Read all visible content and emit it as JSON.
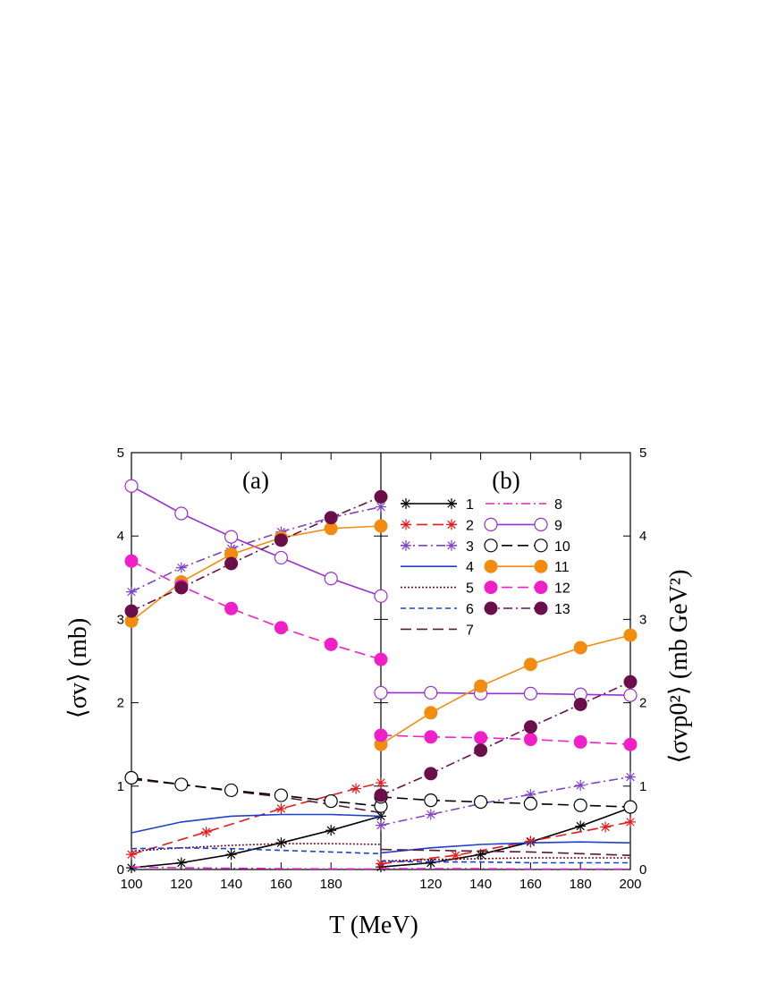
{
  "chart_data": {
    "type": "line",
    "xlabel": "T (MeV)",
    "ylabel_left": "⟨σv⟩ (mb)",
    "ylabel_right": "⟨σvp0²⟩ (mb GeV²)",
    "panel_labels": {
      "a": "(a)",
      "b": "(b)"
    },
    "panel_a": {
      "xlim": [
        100,
        200
      ],
      "ylim": [
        0,
        5
      ],
      "x_ticks": [
        "100",
        "120",
        "140",
        "160",
        "180"
      ]
    },
    "panel_b": {
      "xlim": [
        100,
        200
      ],
      "ylim": [
        0,
        5
      ],
      "x_ticks": [
        "120",
        "140",
        "160",
        "180",
        "200"
      ]
    },
    "y_ticks": [
      "0",
      "1",
      "2",
      "3",
      "4",
      "5"
    ],
    "legend_placement": "top-center, two columns",
    "legend": [
      {
        "label": "1",
        "color": "#000000",
        "dash": "solid",
        "marker": "star"
      },
      {
        "label": "2",
        "color": "#e41a1c",
        "dash": "long-dash",
        "marker": "star"
      },
      {
        "label": "3",
        "color": "#7d43c8",
        "dash": "dash-dot",
        "marker": "star"
      },
      {
        "label": "4",
        "color": "#1f3fcc",
        "dash": "solid",
        "marker": "none"
      },
      {
        "label": "5",
        "color": "#6b0f2a",
        "dash": "dotted",
        "marker": "none"
      },
      {
        "label": "6",
        "color": "#1f3fcc",
        "dash": "short-dash",
        "marker": "none"
      },
      {
        "label": "7",
        "color": "#5a1a3a",
        "dash": "long-dash",
        "marker": "none"
      },
      {
        "label": "8",
        "color": "#e020c8",
        "dash": "dash-dot",
        "marker": "none"
      },
      {
        "label": "9",
        "color": "#9b30d0",
        "dash": "solid",
        "marker": "open-circle"
      },
      {
        "label": "10",
        "color": "#000000",
        "dash": "long-dash",
        "marker": "open-circle"
      },
      {
        "label": "11",
        "color": "#f28c0f",
        "dash": "solid",
        "marker": "filled-circle"
      },
      {
        "label": "12",
        "color": "#f020c8",
        "dash": "long-dash",
        "marker": "filled-circle"
      },
      {
        "label": "13",
        "color": "#6b0f4a",
        "dash": "dash-dot",
        "marker": "filled-circle"
      }
    ],
    "series_a": [
      {
        "label": "1",
        "x": [
          100,
          120,
          140,
          160,
          180,
          200
        ],
        "y": [
          0.02,
          0.08,
          0.18,
          0.32,
          0.47,
          0.64
        ]
      },
      {
        "label": "2",
        "x": [
          100,
          130,
          160,
          190,
          200
        ],
        "y": [
          0.18,
          0.45,
          0.73,
          0.97,
          1.04
        ]
      },
      {
        "label": "3",
        "x": [
          100,
          120,
          140,
          160,
          180,
          200
        ],
        "y": [
          3.33,
          3.62,
          3.85,
          4.05,
          4.22,
          4.35
        ]
      },
      {
        "label": "4",
        "x": [
          100,
          120,
          140,
          160,
          180,
          200
        ],
        "y": [
          0.44,
          0.57,
          0.64,
          0.66,
          0.66,
          0.64
        ]
      },
      {
        "label": "5",
        "x": [
          100,
          120,
          140,
          160,
          180,
          200
        ],
        "y": [
          0.22,
          0.26,
          0.29,
          0.31,
          0.31,
          0.3
        ]
      },
      {
        "label": "6",
        "x": [
          100,
          120,
          140,
          160,
          180,
          200
        ],
        "y": [
          0.25,
          0.26,
          0.25,
          0.23,
          0.21,
          0.19
        ]
      },
      {
        "label": "7",
        "x": [
          100,
          120,
          140,
          160,
          180,
          200
        ],
        "y": [
          1.08,
          1.02,
          0.94,
          0.87,
          0.78,
          0.68
        ]
      },
      {
        "label": "8",
        "x": [
          100,
          120,
          140,
          160,
          180,
          200
        ],
        "y": [
          0.03,
          0.02,
          0.015,
          0.01,
          0.008,
          0.006
        ]
      },
      {
        "label": "9",
        "x": [
          100,
          120,
          140,
          160,
          180,
          200
        ],
        "y": [
          4.6,
          4.27,
          3.99,
          3.74,
          3.49,
          3.28
        ]
      },
      {
        "label": "10",
        "x": [
          100,
          120,
          140,
          160,
          180,
          200
        ],
        "y": [
          1.1,
          1.02,
          0.95,
          0.89,
          0.82,
          0.76
        ]
      },
      {
        "label": "11",
        "x": [
          100,
          120,
          140,
          160,
          180,
          200
        ],
        "y": [
          2.98,
          3.45,
          3.78,
          3.98,
          4.09,
          4.12
        ]
      },
      {
        "label": "12",
        "x": [
          100,
          120,
          140,
          160,
          180,
          200
        ],
        "y": [
          3.7,
          3.4,
          3.13,
          2.9,
          2.7,
          2.52
        ]
      },
      {
        "label": "13",
        "x": [
          100,
          120,
          140,
          160,
          180,
          200
        ],
        "y": [
          3.1,
          3.38,
          3.67,
          3.95,
          4.22,
          4.47
        ]
      }
    ],
    "series_b": [
      {
        "label": "1",
        "x": [
          100,
          120,
          140,
          160,
          180,
          200
        ],
        "y": [
          0.03,
          0.08,
          0.18,
          0.33,
          0.52,
          0.74
        ]
      },
      {
        "label": "2",
        "x": [
          100,
          130,
          160,
          190,
          200
        ],
        "y": [
          0.07,
          0.17,
          0.34,
          0.51,
          0.57
        ]
      },
      {
        "label": "3",
        "x": [
          100,
          120,
          140,
          160,
          180,
          200
        ],
        "y": [
          0.53,
          0.66,
          0.79,
          0.9,
          1.01,
          1.11
        ]
      },
      {
        "label": "4",
        "x": [
          100,
          120,
          140,
          160,
          180,
          200
        ],
        "y": [
          0.2,
          0.26,
          0.3,
          0.32,
          0.33,
          0.32
        ]
      },
      {
        "label": "5",
        "x": [
          100,
          120,
          140,
          160,
          180,
          200
        ],
        "y": [
          0.1,
          0.12,
          0.13,
          0.14,
          0.14,
          0.14
        ]
      },
      {
        "label": "6",
        "x": [
          100,
          120,
          140,
          160,
          180,
          200
        ],
        "y": [
          0.1,
          0.09,
          0.09,
          0.08,
          0.08,
          0.08
        ]
      },
      {
        "label": "7",
        "x": [
          100,
          120,
          140,
          160,
          180,
          200
        ],
        "y": [
          0.24,
          0.23,
          0.22,
          0.21,
          0.19,
          0.17
        ]
      },
      {
        "label": "8",
        "x": [
          100,
          120,
          140,
          160,
          180,
          200
        ],
        "y": [
          0.01,
          0.01,
          0.01,
          0.005,
          0.005,
          0.005
        ]
      },
      {
        "label": "9",
        "x": [
          100,
          120,
          140,
          160,
          180,
          200
        ],
        "y": [
          2.12,
          2.12,
          2.11,
          2.11,
          2.1,
          2.09
        ]
      },
      {
        "label": "10",
        "x": [
          100,
          120,
          140,
          160,
          180,
          200
        ],
        "y": [
          0.87,
          0.83,
          0.81,
          0.79,
          0.77,
          0.75
        ]
      },
      {
        "label": "11",
        "x": [
          100,
          120,
          140,
          160,
          180,
          200
        ],
        "y": [
          1.5,
          1.88,
          2.2,
          2.46,
          2.66,
          2.81
        ]
      },
      {
        "label": "12",
        "x": [
          100,
          120,
          140,
          160,
          180,
          200
        ],
        "y": [
          1.61,
          1.59,
          1.58,
          1.56,
          1.53,
          1.5
        ]
      },
      {
        "label": "13",
        "x": [
          100,
          120,
          140,
          160,
          180,
          200
        ],
        "y": [
          0.89,
          1.15,
          1.43,
          1.71,
          1.98,
          2.25
        ]
      }
    ]
  }
}
